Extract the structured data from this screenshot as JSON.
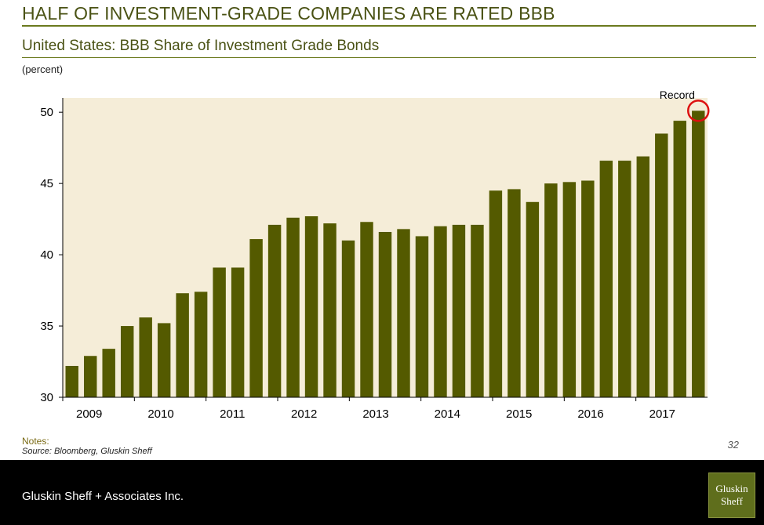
{
  "slide": {
    "title": "HALF OF INVESTMENT-GRADE COMPANIES ARE RATED BBB",
    "page_number": "32"
  },
  "notes": {
    "label": "Notes:",
    "source": "Source: Bloomberg, Gluskin Sheff"
  },
  "footer": {
    "company": "Gluskin Sheff + Associates Inc.",
    "logo_line1": "Gluskin",
    "logo_line2": "Sheff"
  },
  "colors": {
    "bar": "#545a00",
    "plot_background": "#f5edd8",
    "title": "#4a5214",
    "record_marker": "#dd1111"
  },
  "chart_data": {
    "type": "bar",
    "title": "United States: BBB Share of Investment Grade Bonds",
    "units_label": "(percent)",
    "x_tick_labels": [
      "2009",
      "2010",
      "2011",
      "2012",
      "2013",
      "2014",
      "2015",
      "2016",
      "2017"
    ],
    "values": [
      32.2,
      32.9,
      33.4,
      35.0,
      35.6,
      35.2,
      37.3,
      37.4,
      39.1,
      39.1,
      41.1,
      42.1,
      42.6,
      42.7,
      42.2,
      41.0,
      42.3,
      41.6,
      41.8,
      41.3,
      42.0,
      42.1,
      42.1,
      44.5,
      44.6,
      43.7,
      45.0,
      45.1,
      45.2,
      46.6,
      46.6,
      46.9,
      48.5,
      49.4,
      50.1
    ],
    "ylim": [
      30,
      51
    ],
    "y_ticks": [
      30,
      35,
      40,
      45,
      50
    ],
    "annotation": "Record",
    "grid": false
  }
}
